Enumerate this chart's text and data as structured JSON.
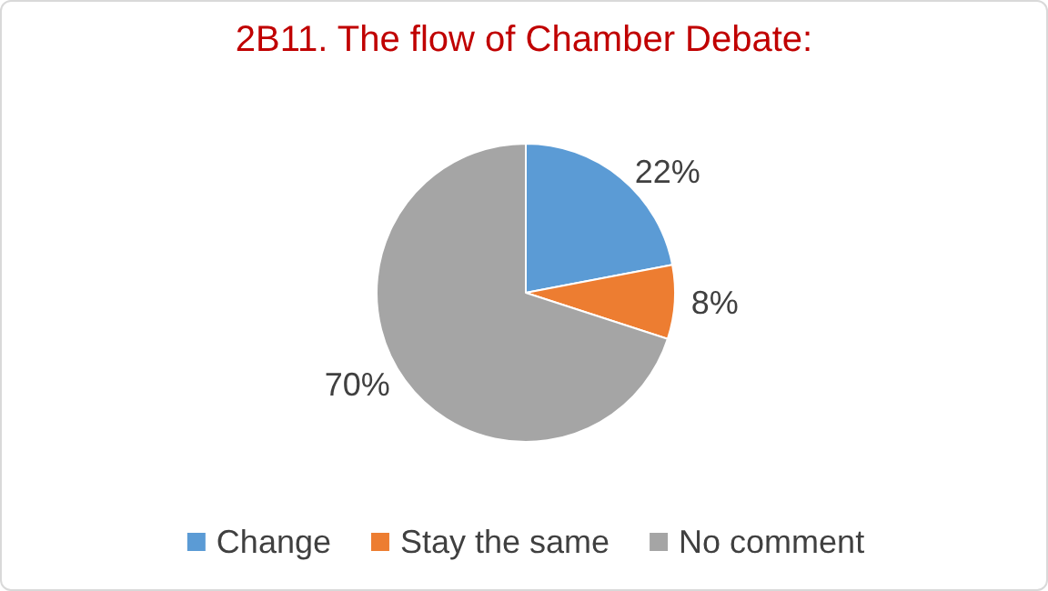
{
  "chart_data": {
    "type": "pie",
    "title": "2B11. The flow of Chamber Debate:",
    "categories": [
      "Change",
      "Stay the same",
      "No comment"
    ],
    "values": [
      22,
      8,
      70
    ],
    "value_labels": [
      "22%",
      "8%",
      "70%"
    ],
    "colors": [
      "#5b9bd5",
      "#ed7d31",
      "#a5a5a5"
    ],
    "legend": "bottom"
  }
}
